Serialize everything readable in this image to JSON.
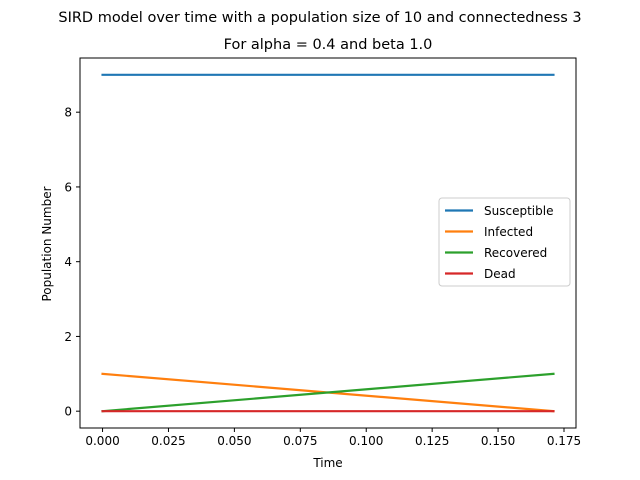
{
  "chart_data": {
    "type": "line",
    "suptitle": "SIRD model over time with a population size of 10 and connectedness 3",
    "title": "For alpha = 0.4 and beta 1.0",
    "xlabel": "Time",
    "ylabel": "Population Number",
    "xlim": [
      -0.00855,
      0.17955
    ],
    "ylim": [
      -0.45,
      9.45
    ],
    "xticks": [
      0.0,
      0.025,
      0.05,
      0.075,
      0.1,
      0.125,
      0.15,
      0.175
    ],
    "xtick_labels": [
      "0.000",
      "0.025",
      "0.050",
      "0.075",
      "0.100",
      "0.125",
      "0.150",
      "0.175"
    ],
    "yticks": [
      0,
      2,
      4,
      6,
      8
    ],
    "ytick_labels": [
      "0",
      "2",
      "4",
      "6",
      "8"
    ],
    "grid": false,
    "legend_position": "center-right",
    "x": [
      0.0,
      0.171
    ],
    "series": [
      {
        "name": "Susceptible",
        "color": "#1f77b4",
        "values": [
          9,
          9
        ]
      },
      {
        "name": "Infected",
        "color": "#ff7f0e",
        "values": [
          1,
          0
        ]
      },
      {
        "name": "Recovered",
        "color": "#2ca02c",
        "values": [
          0,
          1
        ]
      },
      {
        "name": "Dead",
        "color": "#d62728",
        "values": [
          0,
          0
        ]
      }
    ]
  }
}
